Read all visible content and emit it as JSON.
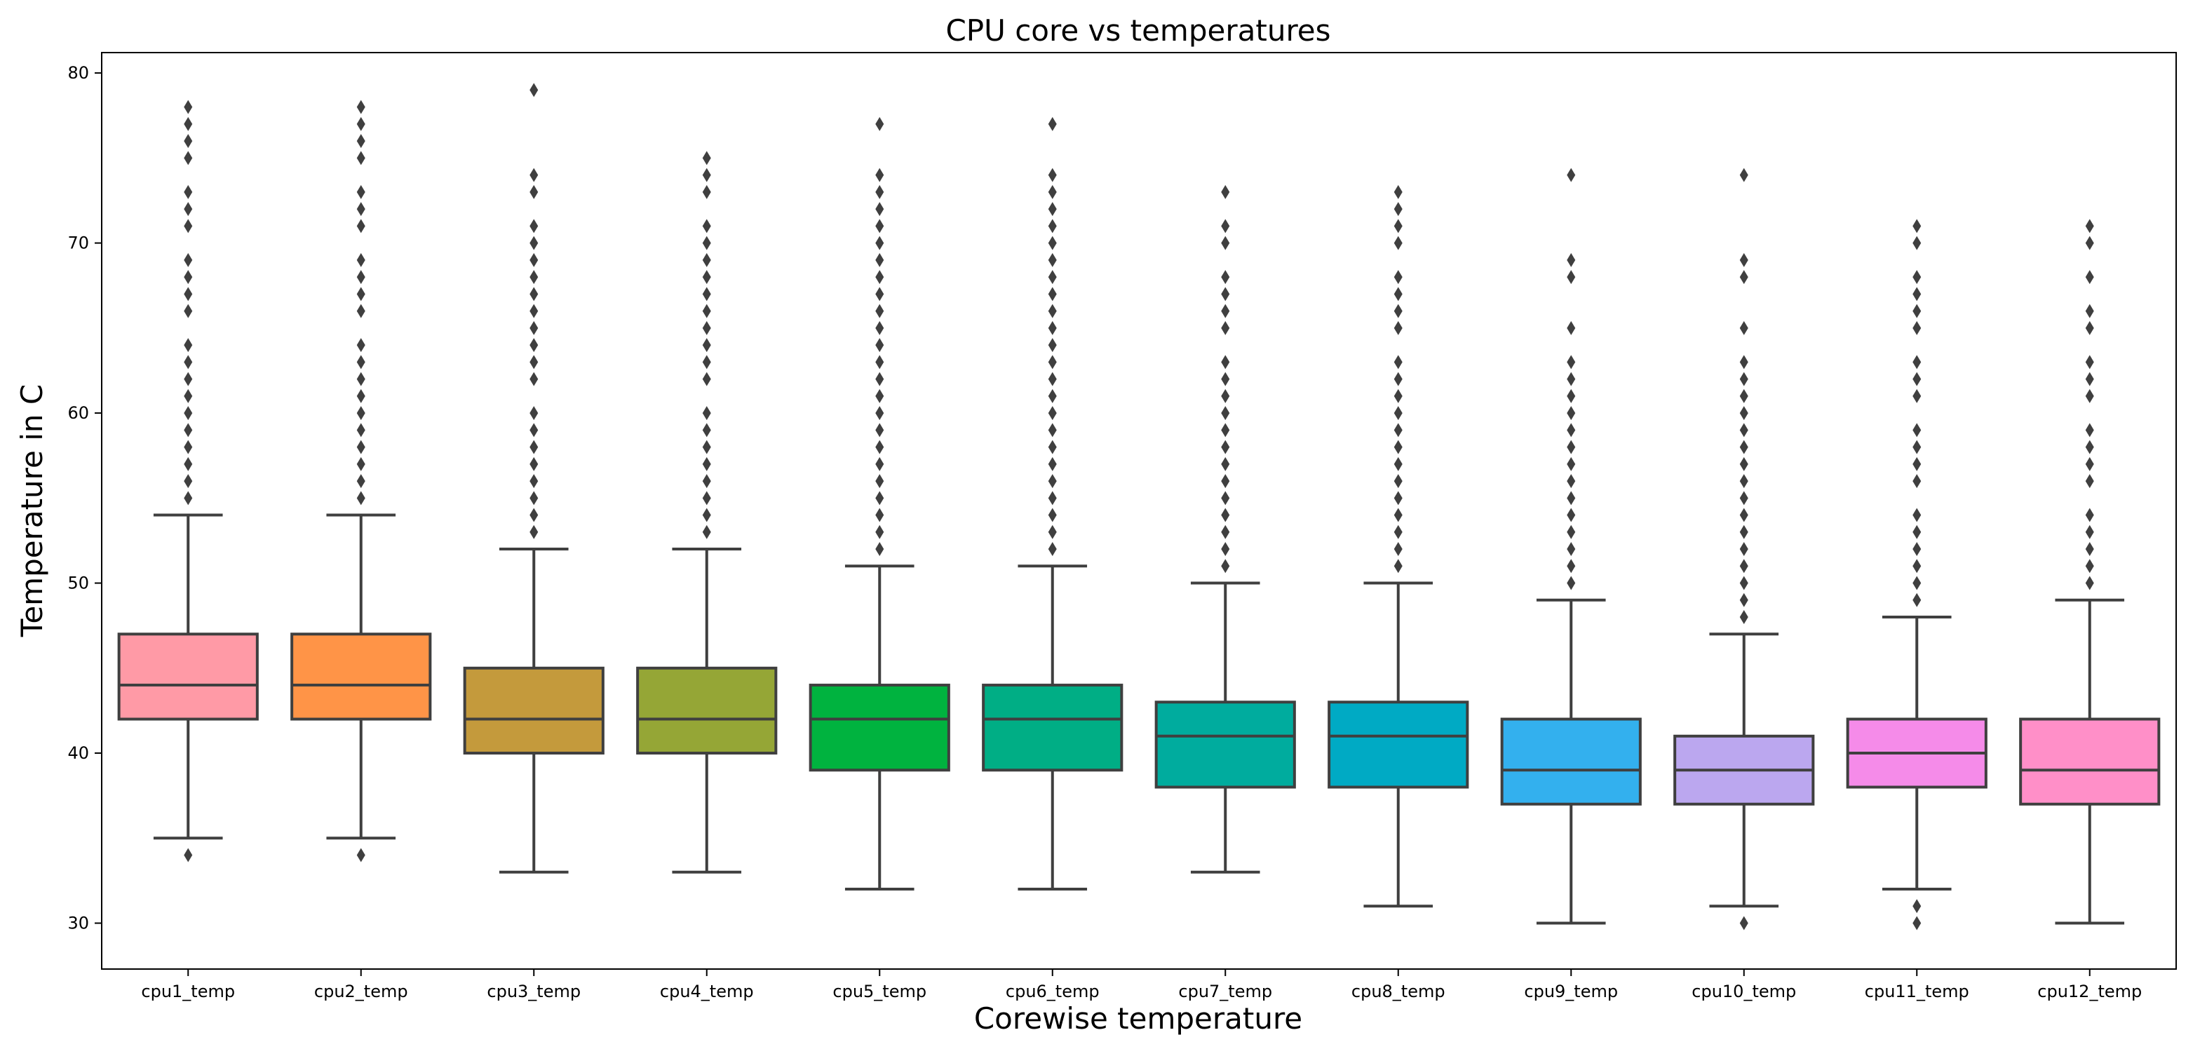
{
  "chart_data": {
    "type": "box",
    "title": "CPU core vs temperatures",
    "xlabel": "Corewise temperature",
    "ylabel": "Temperature in C",
    "ylim": [
      27.3,
      81.2
    ],
    "yticks": [
      30,
      40,
      50,
      60,
      70,
      80
    ],
    "grid": false,
    "series": [
      {
        "name": "cpu1_temp",
        "color": "#ff9aa6",
        "whisker_low": 35,
        "q1": 42,
        "median": 44,
        "q3": 47,
        "whisker_high": 54,
        "outliers": [
          34,
          55,
          56,
          57,
          58,
          59,
          60,
          61,
          62,
          63,
          64,
          66,
          67,
          68,
          69,
          71,
          72,
          73,
          75,
          76,
          77,
          78
        ]
      },
      {
        "name": "cpu2_temp",
        "color": "#ff9447",
        "whisker_low": 35,
        "q1": 42,
        "median": 44,
        "q3": 47,
        "whisker_high": 54,
        "outliers": [
          34,
          55,
          56,
          57,
          58,
          59,
          60,
          61,
          62,
          63,
          64,
          66,
          67,
          68,
          69,
          71,
          72,
          73,
          75,
          76,
          77,
          78
        ]
      },
      {
        "name": "cpu3_temp",
        "color": "#c49a3c",
        "whisker_low": 33,
        "q1": 40,
        "median": 42,
        "q3": 45,
        "whisker_high": 52,
        "outliers": [
          53,
          54,
          55,
          56,
          57,
          58,
          59,
          60,
          62,
          63,
          64,
          65,
          66,
          67,
          68,
          69,
          70,
          71,
          73,
          74,
          79
        ]
      },
      {
        "name": "cpu4_temp",
        "color": "#95a636",
        "whisker_low": 33,
        "q1": 40,
        "median": 42,
        "q3": 45,
        "whisker_high": 52,
        "outliers": [
          53,
          54,
          55,
          56,
          57,
          58,
          59,
          60,
          62,
          63,
          64,
          65,
          66,
          67,
          68,
          69,
          70,
          71,
          73,
          74,
          75
        ]
      },
      {
        "name": "cpu5_temp",
        "color": "#00b33f",
        "whisker_low": 32,
        "q1": 39,
        "median": 42,
        "q3": 44,
        "whisker_high": 51,
        "outliers": [
          52,
          53,
          54,
          55,
          56,
          57,
          58,
          59,
          60,
          61,
          62,
          63,
          64,
          65,
          66,
          67,
          68,
          69,
          70,
          71,
          72,
          73,
          74,
          77
        ]
      },
      {
        "name": "cpu6_temp",
        "color": "#00ae85",
        "whisker_low": 32,
        "q1": 39,
        "median": 42,
        "q3": 44,
        "whisker_high": 51,
        "outliers": [
          52,
          53,
          54,
          55,
          56,
          57,
          58,
          59,
          60,
          61,
          62,
          63,
          64,
          65,
          66,
          67,
          68,
          69,
          70,
          71,
          72,
          73,
          74,
          77
        ]
      },
      {
        "name": "cpu7_temp",
        "color": "#00ac9e",
        "whisker_low": 33,
        "q1": 38,
        "median": 41,
        "q3": 43,
        "whisker_high": 50,
        "outliers": [
          51,
          52,
          53,
          54,
          55,
          56,
          57,
          58,
          59,
          60,
          61,
          62,
          63,
          65,
          66,
          67,
          68,
          70,
          71,
          73
        ]
      },
      {
        "name": "cpu8_temp",
        "color": "#00aac4",
        "whisker_low": 31,
        "q1": 38,
        "median": 41,
        "q3": 43,
        "whisker_high": 50,
        "outliers": [
          51,
          52,
          53,
          54,
          55,
          56,
          57,
          58,
          59,
          60,
          61,
          62,
          63,
          65,
          66,
          67,
          68,
          70,
          71,
          72,
          73
        ]
      },
      {
        "name": "cpu9_temp",
        "color": "#33b0ee",
        "whisker_low": 30,
        "q1": 37,
        "median": 39,
        "q3": 42,
        "whisker_high": 49,
        "outliers": [
          50,
          51,
          52,
          53,
          54,
          55,
          56,
          57,
          58,
          59,
          60,
          61,
          62,
          63,
          65,
          68,
          69,
          74
        ]
      },
      {
        "name": "cpu10_temp",
        "color": "#bba7ef",
        "whisker_low": 31,
        "q1": 37,
        "median": 39,
        "q3": 41,
        "whisker_high": 47,
        "outliers": [
          30,
          48,
          49,
          50,
          51,
          52,
          53,
          54,
          55,
          56,
          57,
          58,
          59,
          60,
          61,
          62,
          63,
          65,
          68,
          69,
          74
        ]
      },
      {
        "name": "cpu11_temp",
        "color": "#f58be9",
        "whisker_low": 32,
        "q1": 38,
        "median": 40,
        "q3": 42,
        "whisker_high": 48,
        "outliers": [
          30,
          31,
          49,
          50,
          51,
          52,
          53,
          54,
          56,
          57,
          58,
          59,
          61,
          62,
          63,
          65,
          66,
          67,
          68,
          70,
          71
        ]
      },
      {
        "name": "cpu12_temp",
        "color": "#ff8fc8",
        "whisker_low": 30,
        "q1": 37,
        "median": 39,
        "q3": 42,
        "whisker_high": 49,
        "outliers": [
          50,
          51,
          52,
          53,
          54,
          56,
          57,
          58,
          59,
          61,
          62,
          63,
          65,
          66,
          68,
          70,
          71
        ]
      }
    ]
  }
}
